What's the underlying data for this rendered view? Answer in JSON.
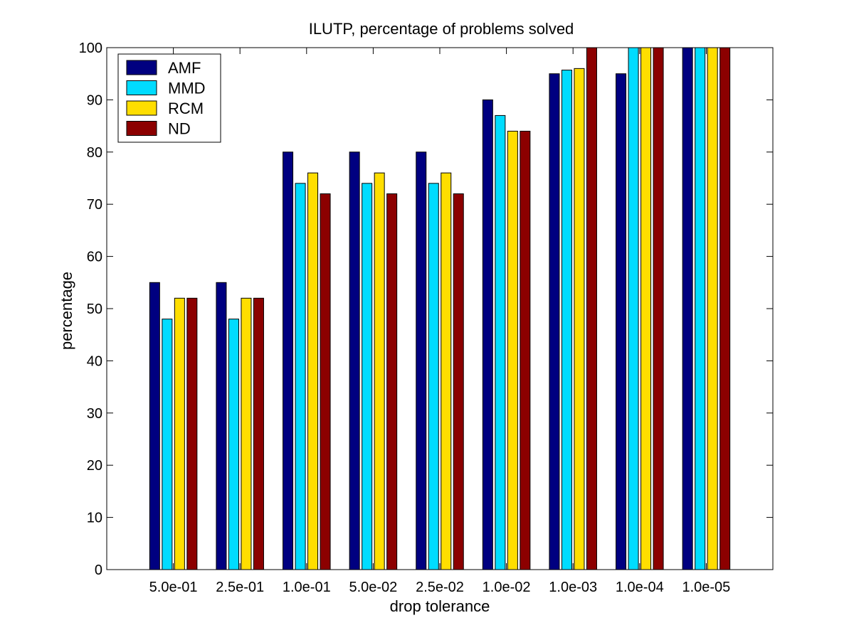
{
  "chart_data": {
    "type": "bar",
    "title": "ILUTP, percentage of problems solved",
    "xlabel": "drop tolerance",
    "ylabel": "percentage",
    "ylim": [
      0,
      100
    ],
    "yticks": [
      0,
      10,
      20,
      30,
      40,
      50,
      60,
      70,
      80,
      90,
      100
    ],
    "grid": false,
    "legend_position": "top-left",
    "categories": [
      "5.0e-01",
      "2.5e-01",
      "1.0e-01",
      "5.0e-02",
      "2.5e-02",
      "1.0e-02",
      "1.0e-03",
      "1.0e-04",
      "1.0e-05"
    ],
    "series": [
      {
        "name": "AMF",
        "color": "#000080",
        "values": [
          55,
          55,
          80,
          80,
          80,
          90,
          95,
          95,
          100
        ]
      },
      {
        "name": "MMD",
        "color": "#00dcff",
        "values": [
          48,
          48,
          74,
          74,
          74,
          87,
          95.7,
          100,
          100
        ]
      },
      {
        "name": "RCM",
        "color": "#ffde00",
        "values": [
          52,
          52,
          76,
          76,
          76,
          84,
          96,
          100,
          100
        ]
      },
      {
        "name": "ND",
        "color": "#8c0000",
        "values": [
          52,
          52,
          72,
          72,
          72,
          84,
          100,
          100,
          100
        ]
      }
    ]
  }
}
